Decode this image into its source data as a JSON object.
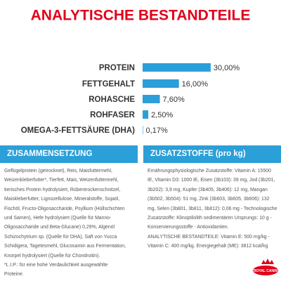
{
  "chart_data": {
    "type": "bar",
    "title": "ANALYTISCHE BESTANDTEILE",
    "categories": [
      "PROTEIN",
      "FETTGEHALT",
      "ROHASCHE",
      "ROHFASER",
      "OMEGA-3-FETTSÄURE (DHA)"
    ],
    "values": [
      30,
      16,
      7.6,
      2.5,
      0.17
    ],
    "value_labels": [
      "30,00%",
      "16,00%",
      "7,60%",
      "2,50%",
      "0,17%"
    ],
    "color": "#2b9fd8"
  },
  "sections": [
    {
      "title": "ZUSAMMENSETZUNG",
      "lines": [
        "Geflügelprotein (getrocknet), Reis, Maisfuttermehl,",
        "Weizenkleberfutter*, Tierfett, Mais, Weizenfuttermehl,",
        "tierisches Protein hydrolysiert, Rübentrockenschnitzel,",
        "Maiskleberfutter, Lignozellulose, Mineralstoffe, Sojaöl,",
        "Fischöl, Fructo-Oligosaccharide, Psyllium (Hüllschichten",
        "und Samen), Hefe hydrolysiert (Quelle für Manno-",
        "Oligosaccharide und Beta-Glucane) 0,29%, Algenöl",
        "Schizochytrium sp. (Quelle für DHA), Saft von Yucca",
        "Schidigera, Tagetesmehl, Glucosamin aus Fermentation,",
        "Knorpel hydrolysiert (Quelle für Chondroitin).",
        "*L.I.P.: für eine hohe Verdaulichkeit ausgewählte",
        "Proteine."
      ]
    },
    {
      "title": "ZUSATZSTOFFE (pro kg)",
      "lines": [
        "Ernährungsphysiologische Zusatzstoffe: Vitamin A: 15500",
        "IE, Vitamin D3: 1000 IE, Eisen (3b103): 39 mg, Jod (3b201,",
        "3b202): 3,9 mg, Kupfer (3b405, 3b406): 12 mg, Mangan",
        "(3b502, 3b504): 51 mg, Zink (3b603, 3b605, 3b606): 132",
        "mg, Selen (3b801, 3b811, 3b812): 0,06 mg - Technologische",
        "Zusatzstoffe: Klinoptilolith sedimentären Ursprungs: 10 g -",
        "Konservierungsstoffe - Antioxidantien.",
        "ANALYTISCHE BESTANDTEILE: Vitamin E: 500 mg/kg -",
        "Vitamin C: 400 mg/kg. Energiegehalt (ME): 3812 kcal/kg"
      ]
    }
  ],
  "logo": "ROYAL CANIN"
}
